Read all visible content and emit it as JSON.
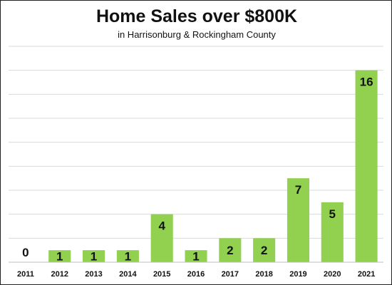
{
  "chart_data": {
    "type": "bar",
    "title": "Home Sales over $800K",
    "subtitle": "in Harrisonburg & Rockingham County",
    "categories": [
      "2011",
      "2012",
      "2013",
      "2014",
      "2015",
      "2016",
      "2017",
      "2018",
      "2019",
      "2020",
      "2021"
    ],
    "values": [
      0,
      1,
      1,
      1,
      4,
      1,
      2,
      2,
      7,
      5,
      16
    ],
    "ylim": [
      0,
      18
    ],
    "ytick_step": 2,
    "grid": true,
    "xlabel": "",
    "ylabel": "",
    "bar_color": "#92d050",
    "grid_color": "#d9d9d9"
  }
}
